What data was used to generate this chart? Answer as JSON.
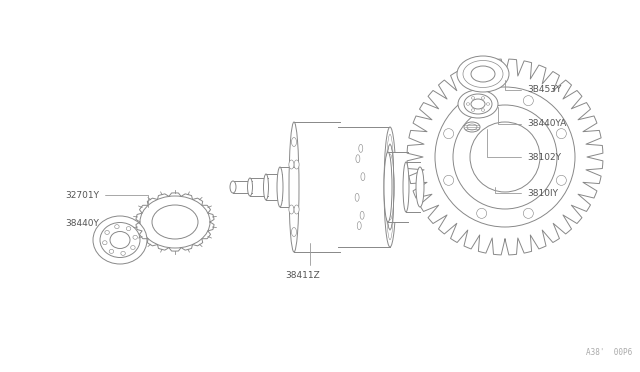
{
  "background_color": "#ffffff",
  "fig_width": 6.4,
  "fig_height": 3.72,
  "dpi": 100,
  "watermark": "A38'  00P6",
  "line_color": "#888888",
  "label_color": "#555555",
  "labels": {
    "38440Y": [
      0.115,
      0.685,
      0.155,
      0.73
    ],
    "32701Y": [
      0.105,
      0.56,
      0.19,
      0.62
    ],
    "38411Z": [
      0.33,
      0.84,
      0.37,
      0.78
    ],
    "3810lY": [
      0.64,
      0.65,
      0.59,
      0.635
    ],
    "38102Y": [
      0.64,
      0.59,
      0.565,
      0.568
    ],
    "38440YA": [
      0.64,
      0.53,
      0.565,
      0.518
    ],
    "3B453Y": [
      0.64,
      0.465,
      0.575,
      0.452
    ]
  }
}
